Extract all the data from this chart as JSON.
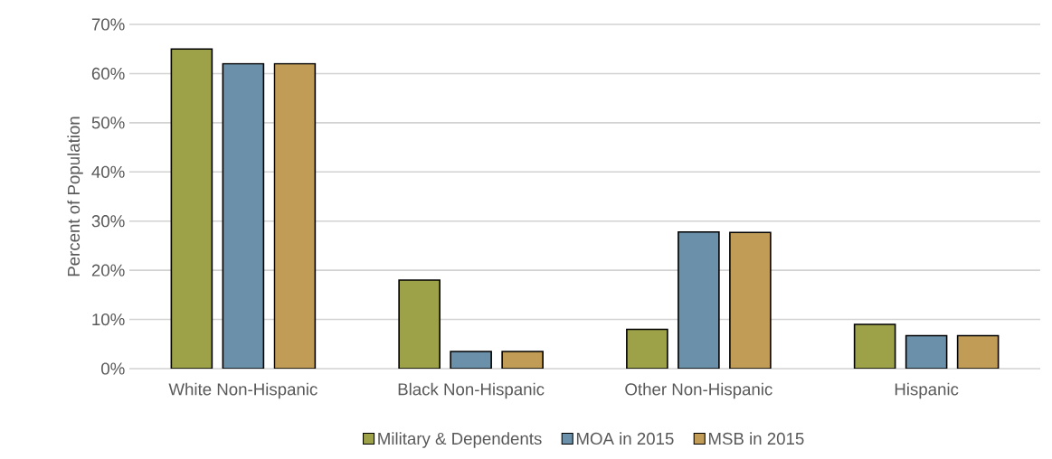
{
  "chart_data": {
    "type": "bar",
    "ylabel": "Percent of Population",
    "categories": [
      "White Non-Hispanic",
      "Black Non-Hispanic",
      "Other Non-Hispanic",
      "Hispanic"
    ],
    "series": [
      {
        "name": "Military & Dependents",
        "color": "#9da248",
        "values": [
          65,
          18,
          8,
          9
        ]
      },
      {
        "name": "MOA in 2015",
        "color": "#6b90aa",
        "values": [
          62,
          3.5,
          27.8,
          6.7
        ]
      },
      {
        "name": "MSB in 2015",
        "color": "#c09c57",
        "values": [
          62,
          3.5,
          27.7,
          6.7
        ]
      }
    ],
    "ylim": [
      0,
      70
    ],
    "yticks": [
      {
        "value": 0,
        "label": "0%"
      },
      {
        "value": 10,
        "label": "10%"
      },
      {
        "value": 20,
        "label": "20%"
      },
      {
        "value": 30,
        "label": "30%"
      },
      {
        "value": 40,
        "label": "40%"
      },
      {
        "value": 50,
        "label": "50%"
      },
      {
        "value": 60,
        "label": "60%"
      },
      {
        "value": 70,
        "label": "70%"
      }
    ],
    "grid": "y",
    "legend": "bottom"
  }
}
